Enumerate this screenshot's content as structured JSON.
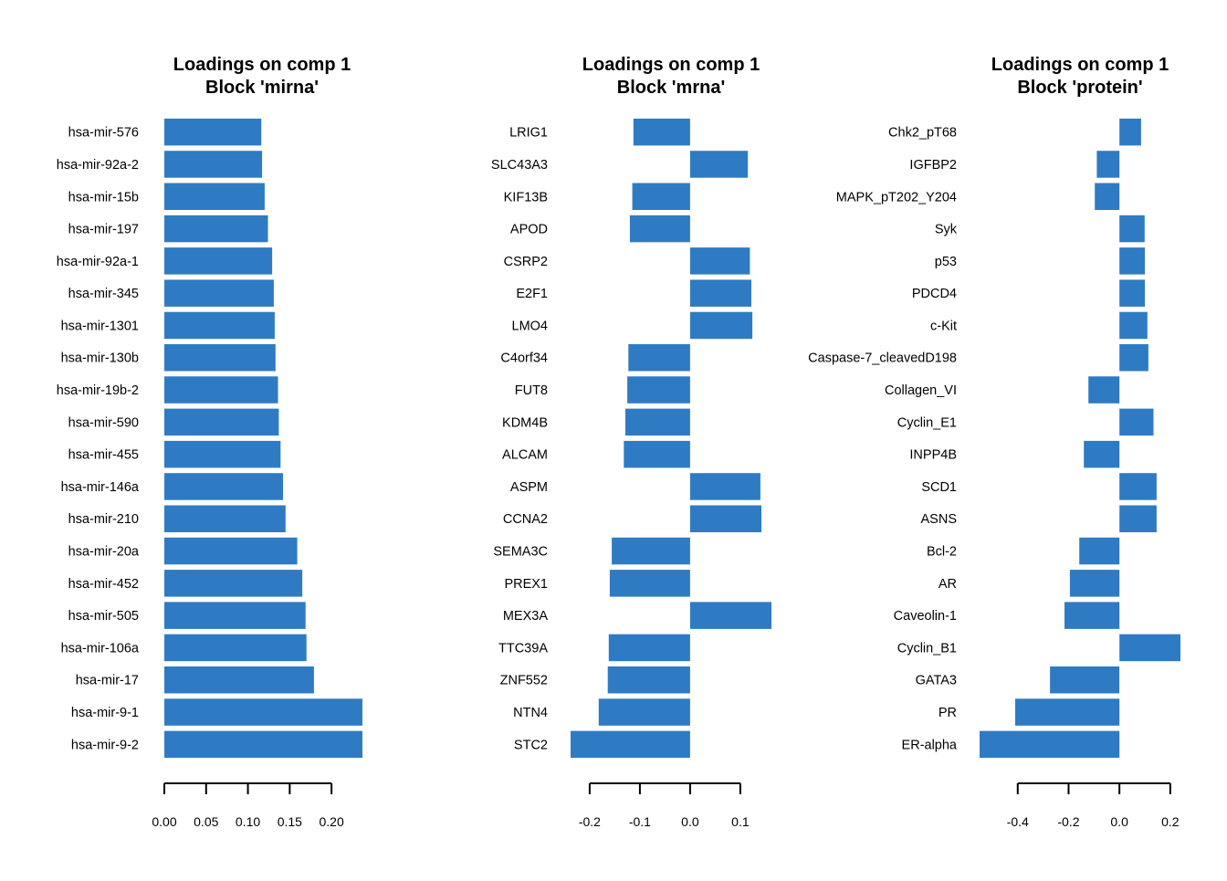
{
  "bar_color": "#2F7BC3",
  "chart_data": [
    {
      "type": "bar",
      "orientation": "horizontal",
      "title": "Loadings on comp 1",
      "subtitle": "Block 'mirna'",
      "categories": [
        "hsa-mir-576",
        "hsa-mir-92a-2",
        "hsa-mir-15b",
        "hsa-mir-197",
        "hsa-mir-92a-1",
        "hsa-mir-345",
        "hsa-mir-1301",
        "hsa-mir-130b",
        "hsa-mir-19b-2",
        "hsa-mir-590",
        "hsa-mir-455",
        "hsa-mir-146a",
        "hsa-mir-210",
        "hsa-mir-20a",
        "hsa-mir-452",
        "hsa-mir-505",
        "hsa-mir-106a",
        "hsa-mir-17",
        "hsa-mir-9-1",
        "hsa-mir-9-2"
      ],
      "values": [
        0.116,
        0.117,
        0.12,
        0.124,
        0.129,
        0.131,
        0.132,
        0.133,
        0.136,
        0.137,
        0.139,
        0.142,
        0.145,
        0.159,
        0.165,
        0.169,
        0.17,
        0.179,
        0.237,
        0.237
      ],
      "xlim": [
        0,
        0.237
      ],
      "xticks": [
        0.0,
        0.05,
        0.1,
        0.15,
        0.2
      ],
      "xtick_labels": [
        "0.00",
        "0.05",
        "0.10",
        "0.15",
        "0.20"
      ]
    },
    {
      "type": "bar",
      "orientation": "horizontal",
      "title": "Loadings on comp 1",
      "subtitle": "Block 'mrna'",
      "categories": [
        "LRIG1",
        "SLC43A3",
        "KIF13B",
        "APOD",
        "CSRP2",
        "E2F1",
        "LMO4",
        "C4orf34",
        "FUT8",
        "KDM4B",
        "ALCAM",
        "ASPM",
        "CCNA2",
        "SEMA3C",
        "PREX1",
        "MEX3A",
        "TTC39A",
        "ZNF552",
        "NTN4",
        "STC2"
      ],
      "values": [
        -0.113,
        0.115,
        -0.115,
        -0.12,
        0.119,
        0.122,
        0.124,
        -0.123,
        -0.125,
        -0.129,
        -0.132,
        0.14,
        0.142,
        -0.156,
        -0.16,
        0.162,
        -0.162,
        -0.164,
        -0.182,
        -0.238
      ],
      "xlim": [
        -0.238,
        0.162
      ],
      "xticks": [
        -0.2,
        -0.1,
        0.0,
        0.1
      ],
      "xtick_labels": [
        "-0.2",
        "-0.1",
        "0.0",
        "0.1"
      ]
    },
    {
      "type": "bar",
      "orientation": "horizontal",
      "title": "Loadings on comp 1",
      "subtitle": "Block 'protein'",
      "categories": [
        "Chk2_pT68",
        "IGFBP2",
        "MAPK_pT202_Y204",
        "Syk",
        "p53",
        "PDCD4",
        "c-Kit",
        "Caspase-7_cleavedD198",
        "Collagen_VI",
        "Cyclin_E1",
        "INPP4B",
        "SCD1",
        "ASNS",
        "Bcl-2",
        "AR",
        "Caveolin-1",
        "Cyclin_B1",
        "GATA3",
        "PR",
        "ER-alpha"
      ],
      "values": [
        0.085,
        -0.089,
        -0.097,
        0.099,
        0.1,
        0.1,
        0.11,
        0.114,
        -0.122,
        0.134,
        -0.14,
        0.146,
        0.146,
        -0.158,
        -0.195,
        -0.216,
        0.24,
        -0.273,
        -0.41,
        -0.55
      ],
      "xlim": [
        -0.55,
        0.24
      ],
      "xticks": [
        -0.4,
        -0.2,
        0.0,
        0.2
      ],
      "xtick_labels": [
        "-0.4",
        "-0.2",
        "0.0",
        "0.2"
      ]
    }
  ]
}
